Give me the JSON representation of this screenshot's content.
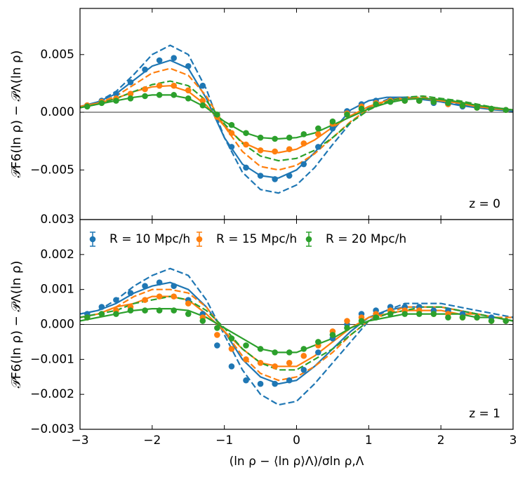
{
  "chart_data": [
    {
      "type": "line",
      "annotation": "z = 0",
      "ylabel": "𝒫F6(ln ρ) − 𝒫Λ(ln ρ)",
      "xlim": [
        -3,
        3
      ],
      "xticks": [
        -3,
        -2,
        -1,
        0,
        1,
        2,
        3
      ],
      "show_xtick_labels": false,
      "ylim": [
        -0.0093,
        0.009
      ],
      "yticks": [
        {
          "value": 0.005,
          "label": "0.005"
        },
        {
          "value": 0,
          "label": "0.000"
        },
        {
          "value": -0.005,
          "label": "−0.005"
        }
      ],
      "reference_line": 0,
      "x": [
        -2.9,
        -2.7,
        -2.5,
        -2.3,
        -2.1,
        -1.9,
        -1.7,
        -1.5,
        -1.3,
        -1.1,
        -0.9,
        -0.7,
        -0.5,
        -0.3,
        -0.1,
        0.1,
        0.3,
        0.5,
        0.7,
        0.9,
        1.1,
        1.3,
        1.5,
        1.7,
        1.9,
        2.1,
        2.3,
        2.5,
        2.7,
        2.9
      ],
      "series": [
        {
          "color": "#1f77b4",
          "values": [
            0.0006,
            0.001,
            0.0016,
            0.0026,
            0.0037,
            0.0045,
            0.0047,
            0.004,
            0.0023,
            -0.0003,
            -0.003,
            -0.0048,
            -0.0055,
            -0.0058,
            -0.0055,
            -0.0045,
            -0.003,
            -0.0014,
            0.0001,
            0.0007,
            0.001,
            0.0011,
            0.0011,
            0.001,
            0.0008,
            0.0007,
            0.0005,
            0.0004,
            0.0003,
            0.0002
          ]
        },
        {
          "color": "#ff7f0e",
          "values": [
            0.0006,
            0.0009,
            0.0012,
            0.0016,
            0.002,
            0.0023,
            0.0023,
            0.0019,
            0.001,
            -0.0004,
            -0.0018,
            -0.0028,
            -0.0033,
            -0.0034,
            -0.0032,
            -0.0027,
            -0.0019,
            -0.001,
            -0.0001,
            0.0005,
            0.0008,
            0.001,
            0.001,
            0.001,
            0.0009,
            0.0007,
            0.0006,
            0.0004,
            0.0003,
            0.0002
          ]
        },
        {
          "color": "#2ca02c",
          "values": [
            0.0005,
            0.0008,
            0.001,
            0.0012,
            0.0014,
            0.0015,
            0.0015,
            0.0012,
            0.0006,
            -0.0002,
            -0.0011,
            -0.0018,
            -0.0022,
            -0.0023,
            -0.0022,
            -0.0019,
            -0.0014,
            -0.0008,
            -0.0002,
            0.0003,
            0.0007,
            0.0009,
            0.001,
            0.001,
            0.0009,
            0.0008,
            0.0006,
            0.0004,
            0.0003,
            0.0002
          ]
        }
      ],
      "curve_x": [
        -3,
        -2.75,
        -2.5,
        -2.25,
        -2,
        -1.75,
        -1.5,
        -1.25,
        -1,
        -0.75,
        -0.5,
        -0.25,
        0,
        0.25,
        0.5,
        0.75,
        1,
        1.25,
        1.5,
        1.75,
        2,
        2.25,
        2.5,
        2.75,
        3
      ],
      "curves": [
        {
          "color": "#1f77b4",
          "dashed": false,
          "values": [
            0.0005,
            0.0009,
            0.0016,
            0.0028,
            0.004,
            0.0045,
            0.0038,
            0.0012,
            -0.0022,
            -0.0045,
            -0.0055,
            -0.0057,
            -0.005,
            -0.0035,
            -0.0016,
            0.0002,
            0.001,
            0.0013,
            0.0013,
            0.0011,
            0.0009,
            0.0006,
            0.0004,
            0.0002,
            0.0001
          ]
        },
        {
          "color": "#1f77b4",
          "dashed": true,
          "values": [
            0.0004,
            0.0009,
            0.0018,
            0.0033,
            0.005,
            0.0058,
            0.005,
            0.002,
            -0.0022,
            -0.0052,
            -0.0067,
            -0.007,
            -0.0063,
            -0.0048,
            -0.0028,
            -0.0009,
            0.0004,
            0.0011,
            0.0013,
            0.0012,
            0.001,
            0.0007,
            0.0005,
            0.0003,
            0.0001
          ]
        },
        {
          "color": "#ff7f0e",
          "dashed": false,
          "values": [
            0.0005,
            0.0008,
            0.0012,
            0.0018,
            0.0022,
            0.0023,
            0.0018,
            0.0006,
            -0.0012,
            -0.0026,
            -0.0033,
            -0.0035,
            -0.0032,
            -0.0024,
            -0.0013,
            -0.0003,
            0.0005,
            0.001,
            0.0012,
            0.0012,
            0.001,
            0.0008,
            0.0005,
            0.0003,
            0.0002
          ]
        },
        {
          "color": "#ff7f0e",
          "dashed": true,
          "values": [
            0.0004,
            0.0008,
            0.0014,
            0.0024,
            0.0034,
            0.0038,
            0.0032,
            0.0014,
            -0.0012,
            -0.0034,
            -0.0047,
            -0.005,
            -0.0046,
            -0.0036,
            -0.0022,
            -0.0008,
            0.0003,
            0.001,
            0.0013,
            0.0013,
            0.0011,
            0.0009,
            0.0006,
            0.0004,
            0.0002
          ]
        },
        {
          "color": "#2ca02c",
          "dashed": false,
          "values": [
            0.0004,
            0.0007,
            0.001,
            0.0013,
            0.0015,
            0.0015,
            0.0012,
            0.0004,
            -0.0008,
            -0.0017,
            -0.0022,
            -0.0023,
            -0.0022,
            -0.0018,
            -0.0011,
            -0.0004,
            0.0003,
            0.0008,
            0.0011,
            0.0012,
            0.0011,
            0.0009,
            0.0006,
            0.0004,
            0.0002
          ]
        },
        {
          "color": "#2ca02c",
          "dashed": true,
          "values": [
            0.0004,
            0.0007,
            0.0012,
            0.0018,
            0.0024,
            0.0027,
            0.0023,
            0.001,
            -0.001,
            -0.0027,
            -0.0038,
            -0.0042,
            -0.004,
            -0.0033,
            -0.0022,
            -0.0009,
            0.0002,
            0.0009,
            0.0013,
            0.0014,
            0.0012,
            0.001,
            0.0007,
            0.0004,
            0.0002
          ]
        }
      ]
    },
    {
      "type": "line",
      "annotation": "z = 1",
      "ylabel": "𝒫F6(ln ρ) − 𝒫Λ(ln ρ)",
      "xlabel": "(ln ρ − ⟨ln ρ⟩Λ)/σln ρ,Λ",
      "xlim": [
        -3,
        3
      ],
      "xticks": [
        {
          "value": -3,
          "label": "−3"
        },
        {
          "value": -2,
          "label": "−2"
        },
        {
          "value": -1,
          "label": "−1"
        },
        0,
        1,
        2,
        3
      ],
      "show_xtick_labels": true,
      "ylim": [
        -0.003,
        0.003
      ],
      "yticks": [
        {
          "value": 0.003,
          "label": "0.003"
        },
        {
          "value": 0.002,
          "label": "0.002"
        },
        {
          "value": 0.001,
          "label": "0.001"
        },
        {
          "value": 0,
          "label": "0.000"
        },
        {
          "value": -0.001,
          "label": "−0.001"
        },
        {
          "value": -0.002,
          "label": "−0.002"
        },
        {
          "value": -0.003,
          "label": "−0.003"
        }
      ],
      "reference_line": 0,
      "legend": "upper center",
      "x": [
        -2.9,
        -2.7,
        -2.5,
        -2.3,
        -2.1,
        -1.9,
        -1.7,
        -1.5,
        -1.3,
        -1.1,
        -0.9,
        -0.7,
        -0.5,
        -0.3,
        -0.1,
        0.1,
        0.3,
        0.5,
        0.7,
        0.9,
        1.1,
        1.3,
        1.5,
        1.7,
        1.9,
        2.1,
        2.3,
        2.5,
        2.7,
        2.9
      ],
      "series": [
        {
          "name": "R = 10 Mpc/h",
          "color": "#1f77b4",
          "values": [
            0.0003,
            0.0005,
            0.0007,
            0.0009,
            0.0011,
            0.0012,
            0.0011,
            0.0007,
            0.0003,
            -0.0006,
            -0.0012,
            -0.0016,
            -0.0017,
            -0.0017,
            -0.0016,
            -0.0013,
            -0.0008,
            -0.0004,
            0.0,
            0.0003,
            0.0004,
            0.0005,
            0.0005,
            0.0005,
            0.0004,
            0.0004,
            0.0003,
            0.0002,
            0.0002,
            0.0001
          ]
        },
        {
          "name": "R = 15 Mpc/h",
          "color": "#ff7f0e",
          "values": [
            0.0002,
            0.0003,
            0.0004,
            0.0005,
            0.0007,
            0.0008,
            0.0008,
            0.0006,
            0.0002,
            -0.0003,
            -0.0007,
            -0.001,
            -0.0011,
            -0.0012,
            -0.0011,
            -0.0009,
            -0.0006,
            -0.0002,
            0.0001,
            0.0002,
            0.0003,
            0.0004,
            0.0004,
            0.0004,
            0.0003,
            0.0003,
            0.0002,
            0.0002,
            0.0001,
            0.0001
          ]
        },
        {
          "name": "R = 20 Mpc/h",
          "color": "#2ca02c",
          "values": [
            0.0002,
            0.0003,
            0.0003,
            0.0004,
            0.0004,
            0.0004,
            0.0004,
            0.0003,
            0.0001,
            -0.0001,
            -0.0004,
            -0.0006,
            -0.0007,
            -0.0008,
            -0.0008,
            -0.0007,
            -0.0005,
            -0.0003,
            -0.0001,
            0.0001,
            0.0002,
            0.0003,
            0.0003,
            0.0003,
            0.0003,
            0.0002,
            0.0002,
            0.0002,
            0.0001,
            0.0001
          ]
        }
      ],
      "curve_x": [
        -3,
        -2.75,
        -2.5,
        -2.25,
        -2,
        -1.75,
        -1.5,
        -1.25,
        -1,
        -0.75,
        -0.5,
        -0.25,
        0,
        0.25,
        0.5,
        0.75,
        1,
        1.25,
        1.5,
        1.75,
        2,
        2.25,
        2.5,
        2.75,
        3
      ],
      "curves": [
        {
          "color": "#1f77b4",
          "dashed": false,
          "values": [
            0.0003,
            0.0004,
            0.0006,
            0.0009,
            0.0011,
            0.0012,
            0.001,
            0.0005,
            -0.0002,
            -0.001,
            -0.0015,
            -0.0017,
            -0.0016,
            -0.0012,
            -0.0007,
            -0.0002,
            0.0002,
            0.0004,
            0.0005,
            0.0005,
            0.0005,
            0.0004,
            0.0003,
            0.0002,
            0.0001
          ]
        },
        {
          "color": "#1f77b4",
          "dashed": true,
          "values": [
            0.0003,
            0.0004,
            0.0007,
            0.0011,
            0.0014,
            0.0016,
            0.0014,
            0.0007,
            -0.0003,
            -0.0013,
            -0.002,
            -0.0023,
            -0.0022,
            -0.0017,
            -0.0011,
            -0.0005,
            0.0001,
            0.0004,
            0.0006,
            0.0006,
            0.0006,
            0.0005,
            0.0004,
            0.0003,
            0.0002
          ]
        },
        {
          "color": "#ff7f0e",
          "dashed": false,
          "values": [
            0.0002,
            0.0003,
            0.0005,
            0.0006,
            0.0008,
            0.0008,
            0.0007,
            0.0003,
            -0.0002,
            -0.0007,
            -0.0011,
            -0.0012,
            -0.0012,
            -0.0009,
            -0.0005,
            -0.0001,
            0.0002,
            0.0003,
            0.0004,
            0.0004,
            0.0004,
            0.0003,
            0.0003,
            0.0002,
            0.0001
          ]
        },
        {
          "color": "#ff7f0e",
          "dashed": true,
          "values": [
            0.0002,
            0.0003,
            0.0005,
            0.0008,
            0.001,
            0.001,
            0.0009,
            0.0005,
            -0.0002,
            -0.0009,
            -0.0014,
            -0.0016,
            -0.0015,
            -0.0012,
            -0.0008,
            -0.0003,
            0.0001,
            0.0003,
            0.0005,
            0.0005,
            0.0005,
            0.0004,
            0.0003,
            0.0002,
            0.0002
          ]
        },
        {
          "color": "#2ca02c",
          "dashed": false,
          "values": [
            0.0001,
            0.0002,
            0.0003,
            0.0004,
            0.00045,
            0.00045,
            0.0004,
            0.0002,
            -0.0001,
            -0.0004,
            -0.0007,
            -0.0008,
            -0.0008,
            -0.0006,
            -0.0004,
            -0.0001,
            0.0001,
            0.0002,
            0.0003,
            0.0003,
            0.0003,
            0.0003,
            0.0002,
            0.0002,
            0.0001
          ]
        },
        {
          "color": "#2ca02c",
          "dashed": true,
          "values": [
            0.0002,
            0.0003,
            0.0004,
            0.0006,
            0.0007,
            0.0008,
            0.0007,
            0.0004,
            -0.0001,
            -0.0007,
            -0.0011,
            -0.0013,
            -0.0013,
            -0.001,
            -0.0007,
            -0.0003,
            0.0001,
            0.0003,
            0.0004,
            0.0005,
            0.0005,
            0.0004,
            0.0003,
            0.0002,
            0.0001
          ]
        }
      ]
    }
  ]
}
